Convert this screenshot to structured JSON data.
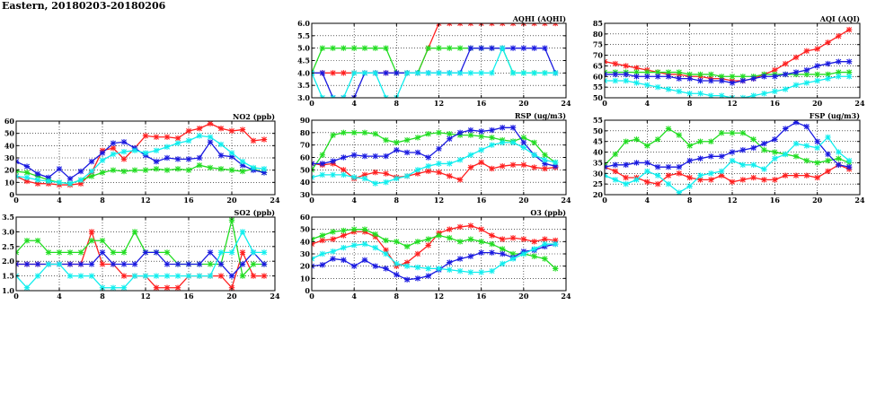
{
  "title": "Eastern, 20180203-20180206",
  "colors": {
    "red": "#ff2020",
    "green": "#22dd22",
    "blue": "#1a1ae0",
    "cyan": "#10eeee"
  },
  "chart_data": [
    {
      "key": "no2",
      "type": "line",
      "title": "NO2 (ppb)",
      "xlim": [
        0,
        24
      ],
      "ylim": [
        0,
        60
      ],
      "xticks": [
        0,
        4,
        8,
        12,
        16,
        20,
        24
      ],
      "yticks": [
        0,
        10,
        20,
        30,
        40,
        50,
        60
      ],
      "grid": true,
      "series": [
        {
          "color": "red",
          "values": [
            15,
            11,
            9,
            9,
            8,
            8,
            9,
            18,
            36,
            38,
            29,
            38,
            48,
            47,
            47,
            46,
            52,
            54,
            58,
            54,
            52,
            53,
            44,
            45
          ]
        },
        {
          "color": "green",
          "values": [
            19,
            18,
            15,
            12,
            10,
            9,
            12,
            15,
            18,
            20,
            19,
            20,
            20,
            21,
            20,
            21,
            20,
            24,
            22,
            21,
            20,
            19,
            21,
            18
          ]
        },
        {
          "color": "blue",
          "values": [
            27,
            23,
            17,
            14,
            21,
            13,
            19,
            27,
            34,
            42,
            43,
            38,
            32,
            27,
            30,
            29,
            29,
            30,
            43,
            32,
            31,
            24,
            20,
            18
          ]
        },
        {
          "color": "cyan",
          "values": [
            15,
            14,
            12,
            11,
            10,
            9,
            12,
            19,
            28,
            33,
            35,
            36,
            34,
            36,
            39,
            42,
            44,
            48,
            47,
            41,
            34,
            27,
            22,
            21
          ]
        }
      ]
    },
    {
      "key": "so2",
      "type": "line",
      "title": "SO2 (ppb)",
      "xlim": [
        0,
        24
      ],
      "ylim": [
        1.0,
        3.5
      ],
      "xticks": [
        0,
        4,
        8,
        12,
        16,
        20,
        24
      ],
      "yticks": [
        1.0,
        1.5,
        2.0,
        2.5,
        3.0,
        3.5
      ],
      "grid": true,
      "series": [
        {
          "color": "red",
          "values": [
            1.9,
            1.9,
            1.9,
            1.9,
            1.9,
            1.9,
            1.9,
            3.0,
            1.9,
            1.9,
            1.5,
            1.5,
            1.5,
            1.1,
            1.1,
            1.1,
            1.5,
            1.5,
            1.5,
            1.5,
            1.1,
            2.3,
            1.5,
            1.5
          ]
        },
        {
          "color": "green",
          "values": [
            2.3,
            2.7,
            2.7,
            2.3,
            2.3,
            2.3,
            2.3,
            2.7,
            2.7,
            2.3,
            2.3,
            3.0,
            2.3,
            2.3,
            2.3,
            1.9,
            1.9,
            1.9,
            1.9,
            1.9,
            3.4,
            1.5,
            1.9,
            1.9
          ]
        },
        {
          "color": "blue",
          "values": [
            1.9,
            1.9,
            1.9,
            1.9,
            1.9,
            1.9,
            1.9,
            1.9,
            2.3,
            1.9,
            1.9,
            1.9,
            2.3,
            2.3,
            1.9,
            1.9,
            1.9,
            1.9,
            2.3,
            1.9,
            1.5,
            1.9,
            2.3,
            1.9
          ]
        },
        {
          "color": "cyan",
          "values": [
            1.5,
            1.1,
            1.5,
            1.9,
            1.9,
            1.5,
            1.5,
            1.5,
            1.1,
            1.1,
            1.1,
            1.5,
            1.5,
            1.5,
            1.5,
            1.5,
            1.5,
            1.5,
            1.5,
            2.3,
            2.3,
            3.0,
            2.3,
            2.3
          ]
        }
      ]
    },
    {
      "key": "aqhi",
      "type": "line",
      "title": "AQHI (AQHI)",
      "xlim": [
        0,
        24
      ],
      "ylim": [
        3.0,
        6.0
      ],
      "xticks": [
        0,
        4,
        8,
        12,
        16,
        20,
        24
      ],
      "yticks": [
        3.0,
        3.5,
        4.0,
        4.5,
        5.0,
        5.5,
        6.0
      ],
      "grid": true,
      "series": [
        {
          "color": "red",
          "values": [
            4,
            4,
            4,
            4,
            4,
            4,
            4,
            4,
            4,
            4,
            4,
            5,
            6,
            6,
            6,
            6,
            6,
            6,
            6,
            6,
            6,
            6,
            6,
            6
          ]
        },
        {
          "color": "green",
          "values": [
            4,
            5,
            5,
            5,
            5,
            5,
            5,
            5,
            4,
            4,
            4,
            5,
            5,
            5,
            5,
            5,
            5,
            5,
            5,
            4,
            4,
            4,
            4,
            4
          ]
        },
        {
          "color": "blue",
          "values": [
            4,
            4,
            3,
            3,
            3,
            4,
            4,
            4,
            4,
            4,
            4,
            4,
            4,
            4,
            4,
            5,
            5,
            5,
            5,
            5,
            5,
            5,
            5,
            4
          ]
        },
        {
          "color": "cyan",
          "values": [
            4,
            3,
            3,
            3,
            4,
            4,
            4,
            3,
            3,
            4,
            4,
            4,
            4,
            4,
            4,
            4,
            4,
            4,
            5,
            4,
            4,
            4,
            4,
            4
          ]
        }
      ]
    },
    {
      "key": "rsp",
      "type": "line",
      "title": "RSP (ug/m3)",
      "xlim": [
        0,
        24
      ],
      "ylim": [
        30,
        90
      ],
      "xticks": [
        0,
        4,
        8,
        12,
        16,
        20,
        24
      ],
      "yticks": [
        30,
        40,
        50,
        60,
        70,
        80,
        90
      ],
      "grid": true,
      "series": [
        {
          "color": "red",
          "values": [
            55,
            54,
            55,
            50,
            43,
            46,
            48,
            47,
            44,
            45,
            47,
            49,
            48,
            45,
            42,
            52,
            56,
            51,
            53,
            54,
            54,
            52,
            51,
            52
          ]
        },
        {
          "color": "green",
          "values": [
            50,
            62,
            78,
            80,
            80,
            80,
            79,
            74,
            72,
            74,
            76,
            79,
            80,
            79,
            78,
            78,
            77,
            76,
            74,
            73,
            76,
            72,
            62,
            56
          ]
        },
        {
          "color": "blue",
          "values": [
            55,
            55,
            57,
            60,
            62,
            61,
            61,
            61,
            66,
            64,
            64,
            60,
            67,
            75,
            80,
            82,
            81,
            82,
            84,
            84,
            72,
            62,
            55,
            53
          ]
        },
        {
          "color": "cyan",
          "values": [
            44,
            46,
            46,
            46,
            44,
            43,
            39,
            40,
            43,
            45,
            50,
            53,
            55,
            55,
            58,
            62,
            66,
            70,
            72,
            72,
            68,
            62,
            58,
            56
          ]
        }
      ]
    },
    {
      "key": "o3",
      "type": "line",
      "title": "O3 (ppb)",
      "xlim": [
        0,
        24
      ],
      "ylim": [
        0,
        60
      ],
      "xticks": [
        0,
        4,
        8,
        12,
        16,
        20,
        24
      ],
      "yticks": [
        0,
        10,
        20,
        30,
        40,
        50,
        60
      ],
      "grid": true,
      "series": [
        {
          "color": "red",
          "values": [
            38,
            41,
            42,
            45,
            48,
            48,
            44,
            33,
            20,
            23,
            30,
            37,
            47,
            50,
            52,
            53,
            50,
            45,
            42,
            43,
            42,
            40,
            42,
            41
          ]
        },
        {
          "color": "green",
          "values": [
            42,
            45,
            48,
            49,
            50,
            50,
            46,
            41,
            40,
            36,
            40,
            42,
            45,
            43,
            40,
            42,
            40,
            38,
            34,
            30,
            30,
            28,
            26,
            18
          ]
        },
        {
          "color": "blue",
          "values": [
            20,
            21,
            26,
            25,
            20,
            25,
            20,
            18,
            13,
            9,
            10,
            12,
            17,
            23,
            26,
            28,
            31,
            31,
            30,
            27,
            32,
            33,
            36,
            38
          ]
        },
        {
          "color": "cyan",
          "values": [
            26,
            30,
            32,
            35,
            37,
            38,
            35,
            30,
            22,
            20,
            19,
            18,
            18,
            17,
            16,
            15,
            15,
            16,
            22,
            26,
            30,
            34,
            38,
            38
          ]
        }
      ]
    },
    {
      "key": "aqi",
      "type": "line",
      "title": "AQI (AQI)",
      "xlim": [
        0,
        24
      ],
      "ylim": [
        50,
        85
      ],
      "xticks": [
        0,
        4,
        8,
        12,
        16,
        20,
        24
      ],
      "yticks": [
        50,
        55,
        60,
        65,
        70,
        75,
        80,
        85
      ],
      "grid": true,
      "series": [
        {
          "color": "red",
          "values": [
            67,
            66,
            65,
            64,
            63,
            62,
            61,
            61,
            60,
            60,
            59,
            59,
            58,
            58,
            59,
            61,
            63,
            66,
            69,
            72,
            73,
            76,
            79,
            82
          ]
        },
        {
          "color": "green",
          "values": [
            62,
            62,
            62,
            62,
            62,
            62,
            62,
            62,
            61,
            61,
            61,
            60,
            60,
            60,
            60,
            61,
            61,
            61,
            61,
            61,
            61,
            61,
            62,
            62
          ]
        },
        {
          "color": "blue",
          "values": [
            61,
            61,
            61,
            60,
            60,
            60,
            60,
            59,
            59,
            58,
            58,
            58,
            57,
            58,
            59,
            60,
            60,
            61,
            62,
            63,
            65,
            66,
            67,
            67
          ]
        },
        {
          "color": "cyan",
          "values": [
            58,
            58,
            58,
            57,
            56,
            55,
            54,
            53,
            52,
            52,
            51,
            51,
            50,
            50,
            51,
            52,
            53,
            54,
            56,
            57,
            58,
            59,
            60,
            60
          ]
        }
      ]
    },
    {
      "key": "fsp",
      "type": "line",
      "title": "FSP (ug/m3)",
      "xlim": [
        0,
        24
      ],
      "ylim": [
        20,
        55
      ],
      "xticks": [
        0,
        4,
        8,
        12,
        16,
        20,
        24
      ],
      "yticks": [
        20,
        25,
        30,
        35,
        40,
        45,
        50,
        55
      ],
      "grid": true,
      "series": [
        {
          "color": "red",
          "values": [
            33,
            31,
            28,
            28,
            26,
            25,
            29,
            30,
            28,
            27,
            27,
            29,
            26,
            27,
            28,
            27,
            27,
            29,
            29,
            29,
            28,
            31,
            34,
            32
          ]
        },
        {
          "color": "green",
          "values": [
            34,
            39,
            45,
            46,
            43,
            46,
            51,
            48,
            43,
            45,
            45,
            49,
            49,
            49,
            46,
            41,
            40,
            39,
            38,
            36,
            35,
            36,
            37,
            35
          ]
        },
        {
          "color": "blue",
          "values": [
            33,
            34,
            34,
            35,
            35,
            33,
            33,
            33,
            36,
            37,
            38,
            38,
            40,
            41,
            42,
            44,
            46,
            51,
            54,
            52,
            45,
            39,
            34,
            33
          ]
        },
        {
          "color": "cyan",
          "values": [
            29,
            27,
            25,
            27,
            31,
            29,
            25,
            21,
            24,
            29,
            30,
            31,
            36,
            34,
            34,
            32,
            37,
            39,
            44,
            43,
            42,
            47,
            40,
            36
          ]
        }
      ]
    }
  ]
}
